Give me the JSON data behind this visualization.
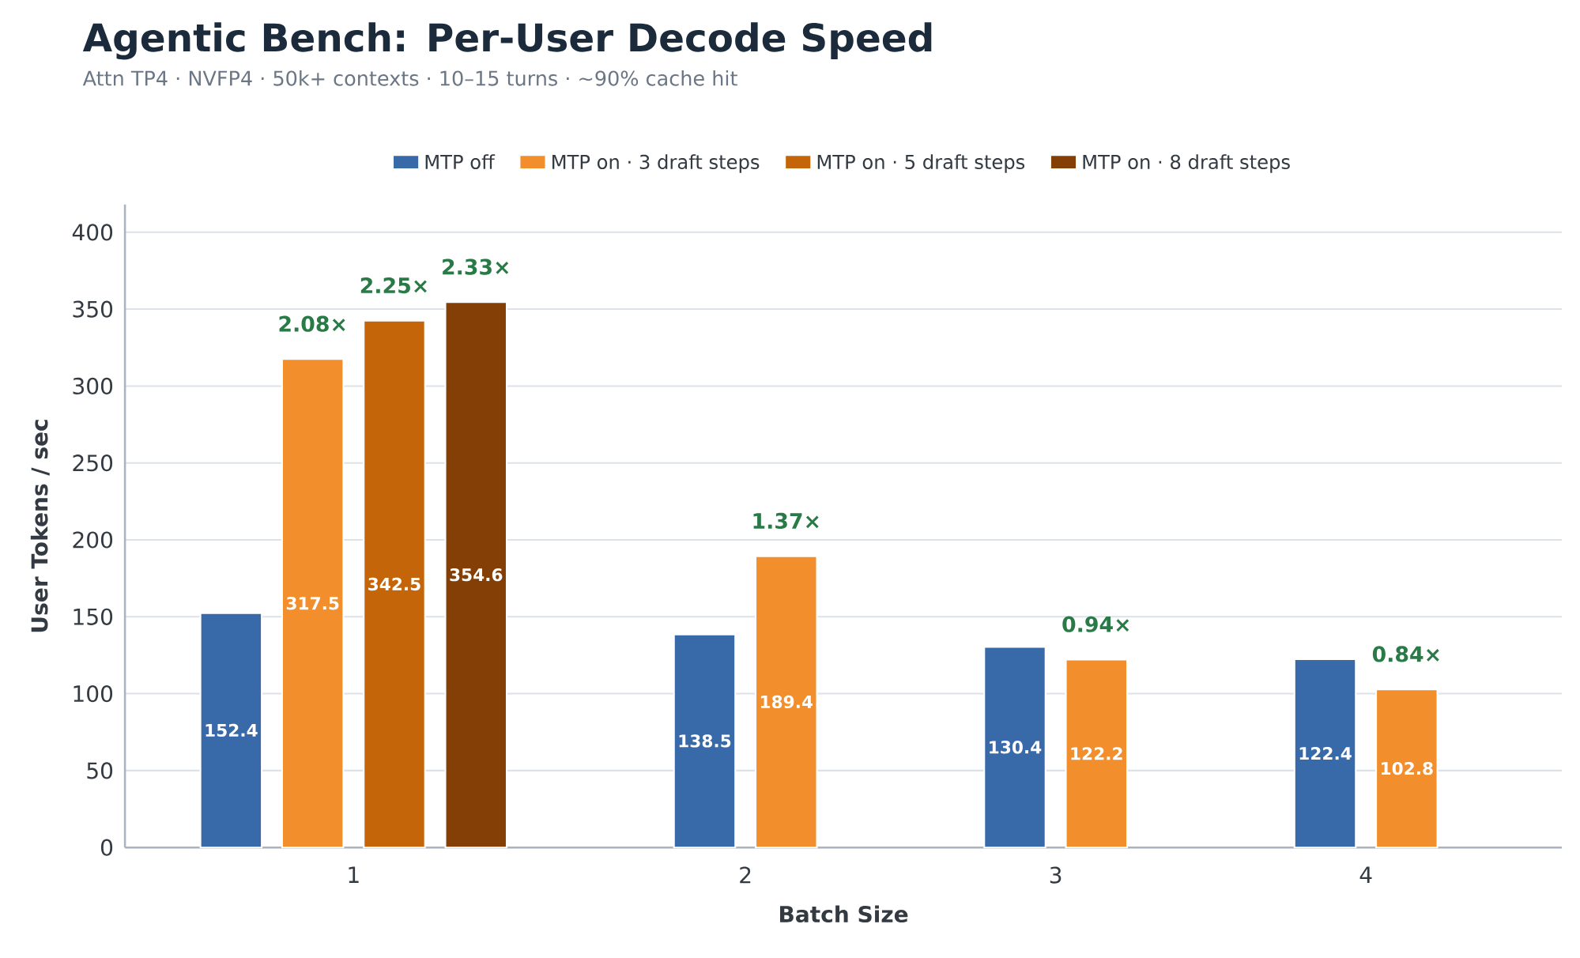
{
  "chart_data": {
    "type": "bar",
    "title": "Agentic Bench: Per-User Decode Speed",
    "subtitle": "Attn TP4 · NVFP4 · 50k+ contexts · 10–15 turns · ~90% cache hit",
    "xlabel": "Batch Size",
    "ylabel": "User Tokens / sec",
    "categories": [
      "1",
      "2",
      "3",
      "4"
    ],
    "series": [
      {
        "name": "MTP off",
        "color": "#3869a8",
        "values": [
          152.4,
          138.5,
          130.4,
          122.4
        ]
      },
      {
        "name": "MTP on · 3 draft steps",
        "color": "#f28e2c",
        "values": [
          317.5,
          189.4,
          122.2,
          102.8
        ]
      },
      {
        "name": "MTP on · 5 draft steps",
        "color": "#c4650a",
        "values": [
          342.5,
          null,
          null,
          null
        ]
      },
      {
        "name": "MTP on · 8 draft steps",
        "color": "#833f06",
        "values": [
          354.6,
          null,
          null,
          null
        ]
      }
    ],
    "annotations": [
      "2.08×",
      "2.25×",
      "2.33×",
      "1.37×",
      "0.94×",
      "0.84×"
    ],
    "ylim": [
      0,
      418
    ],
    "yticks": [
      0,
      50,
      100,
      150,
      200,
      250,
      300,
      350,
      400
    ],
    "grid": "y",
    "legend": "top",
    "data_labels": true
  }
}
